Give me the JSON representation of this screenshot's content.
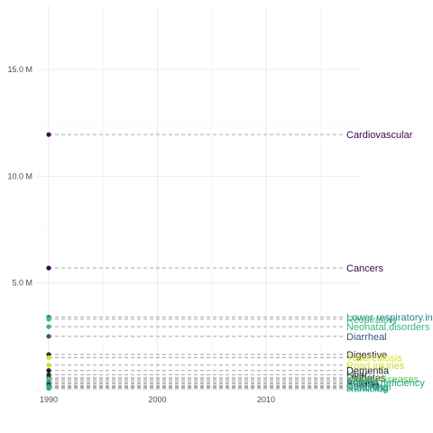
{
  "chart_data": {
    "type": "scatter",
    "title": "",
    "xlabel": "",
    "ylabel": "",
    "x_ticks": [
      "1990",
      "2000",
      "2010"
    ],
    "y_ticks": [
      "5.0 M",
      "10.0 M",
      "15.0 M"
    ],
    "xlim": [
      1990,
      2019
    ],
    "ylim": [
      0,
      17500000
    ],
    "grid": true,
    "legend": "none",
    "series": [
      {
        "name": "Cardiovascular",
        "x": 1990,
        "y": 11950000,
        "color": "#440154"
      },
      {
        "name": "Cancers",
        "x": 1990,
        "y": 5700000,
        "color": "#440154"
      },
      {
        "name": "Lower respiratory infections",
        "x": 1990,
        "y": 3400000,
        "color": "#26828e"
      },
      {
        "name": "Respiratory",
        "x": 1990,
        "y": 3300000,
        "color": "#3fbc73"
      },
      {
        "name": "Neonatal disorders",
        "x": 1990,
        "y": 2950000,
        "color": "#35b779"
      },
      {
        "name": "Diarrheal",
        "x": 1990,
        "y": 2500000,
        "color": "#3b528b"
      },
      {
        "name": "Digestive",
        "x": 1990,
        "y": 1650000,
        "color": "#2c2c2c"
      },
      {
        "name": "Tuberculosis",
        "x": 1990,
        "y": 1500000,
        "color": "#d8e219"
      },
      {
        "name": "Road injuries",
        "x": 1990,
        "y": 1150000,
        "color": "#c8e020"
      },
      {
        "name": "Dementia",
        "x": 1990,
        "y": 900000,
        "color": "#1f1f1f"
      },
      {
        "name": "Liver",
        "x": 1990,
        "y": 700000,
        "color": "#2a2a2a"
      },
      {
        "name": "Diabetes",
        "x": 1990,
        "y": 560000,
        "color": "#2a2a2a"
      },
      {
        "name": "Kidney",
        "x": 1990,
        "y": 500000,
        "color": "#5ec962"
      },
      {
        "name": "Malaria",
        "x": 1990,
        "y": 420000,
        "color": "#4ac16d"
      },
      {
        "name": "Protein deficiency",
        "x": 1990,
        "y": 340000,
        "color": "#23a884"
      },
      {
        "name": "Suicide",
        "x": 1990,
        "y": 280000,
        "color": "#2d708e"
      },
      {
        "name": "Conflict",
        "x": 1990,
        "y": 200000,
        "color": "#440154"
      },
      {
        "name": "Nutritional",
        "x": 1990,
        "y": 150000,
        "color": "#2fb47c"
      },
      {
        "name": "Drowning",
        "x": 1990,
        "y": 100000,
        "color": "#1f9e89"
      },
      {
        "name": "Homicide",
        "x": 1990,
        "y": 60000,
        "color": "#29af7f"
      }
    ],
    "labels_shown": [
      {
        "text": "Cardiovascular",
        "series": 0
      },
      {
        "text": "Cancers",
        "series": 1
      },
      {
        "text": "Lower respiratory.in",
        "series": 2
      },
      {
        "text": "Respiratory",
        "series": 3
      },
      {
        "text": "Neonatal.disorders",
        "series": 4
      },
      {
        "text": "Diarrheal",
        "series": 5
      },
      {
        "text": "Digestive",
        "series": 6
      },
      {
        "text": "Tuberculosis",
        "series": 7
      },
      {
        "text": "Road injuries",
        "series": 8
      },
      {
        "text": "Dementia",
        "series": 9
      },
      {
        "text": "Liver",
        "series": 10
      },
      {
        "text": "Diabetes",
        "series": 11
      },
      {
        "text": "Kidney diseases",
        "series": 12
      },
      {
        "text": "Malaria",
        "series": 13
      },
      {
        "text": "Protein deficiency",
        "series": 14
      },
      {
        "text": "Suicide",
        "series": 15
      },
      {
        "text": "Conflict",
        "series": 16
      },
      {
        "text": "Nutritional",
        "series": 17
      },
      {
        "text": "Drowning",
        "series": 18
      },
      {
        "text": "Homicide",
        "series": 19
      }
    ]
  }
}
